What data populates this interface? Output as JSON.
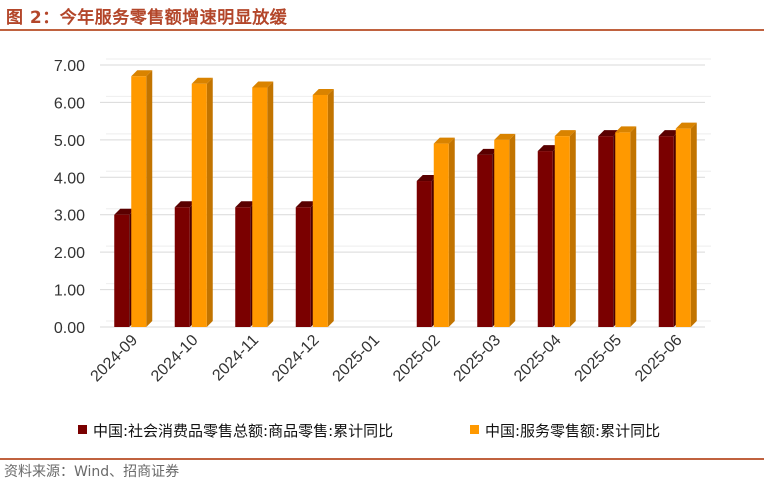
{
  "figure": {
    "title": "图 2：今年服务零售额增速明显放缓",
    "source": "资料来源：Wind、招商证券"
  },
  "colors": {
    "accent": "#b3462a",
    "series_goods_front": "#7a0000",
    "series_goods_side": "#4a0000",
    "series_goods_top": "#5a0000",
    "series_service_front": "#ff9900",
    "series_service_side": "#c27400",
    "series_service_top": "#d98300",
    "grid": "#d9d9d9"
  },
  "chart_data": {
    "type": "bar",
    "categories": [
      "2024-09",
      "2024-10",
      "2024-11",
      "2024-12",
      "2025-01",
      "2025-02",
      "2025-03",
      "2025-04",
      "2025-05",
      "2025-06"
    ],
    "yticks": [
      "0.00",
      "1.00",
      "2.00",
      "3.00",
      "4.00",
      "5.00",
      "6.00",
      "7.00"
    ],
    "ylim": [
      0,
      7
    ],
    "grid": true,
    "legend_position": "bottom",
    "series": [
      {
        "name": "中国:社会消费品零售总额:商品零售:累计同比",
        "values": [
          3.0,
          3.2,
          3.2,
          3.2,
          null,
          3.9,
          4.6,
          4.7,
          5.1,
          5.1
        ]
      },
      {
        "name": "中国:服务零售额:累计同比",
        "values": [
          6.7,
          6.5,
          6.4,
          6.2,
          null,
          4.9,
          5.0,
          5.1,
          5.2,
          5.3
        ]
      }
    ]
  }
}
